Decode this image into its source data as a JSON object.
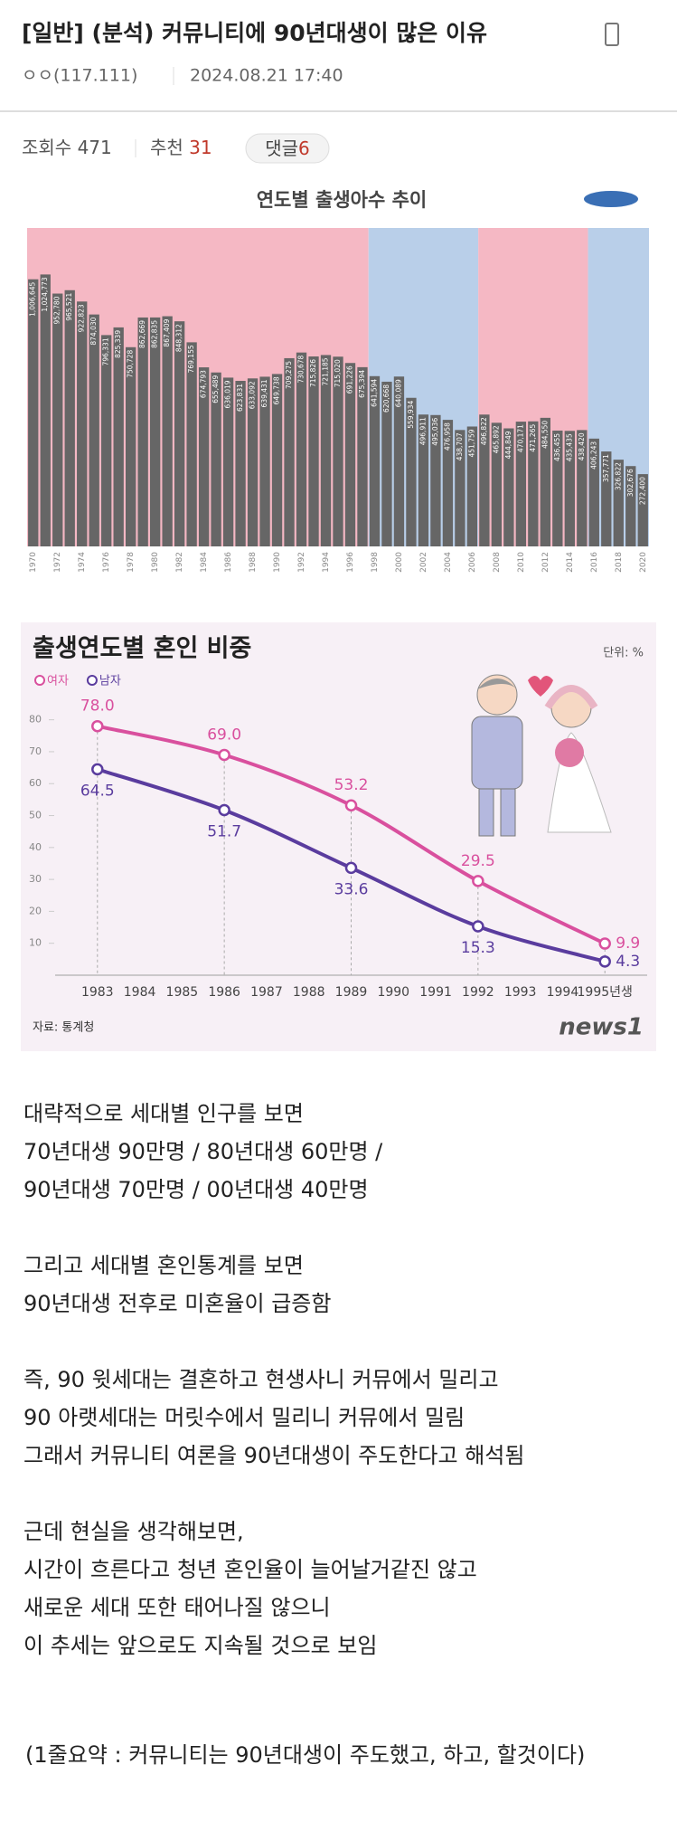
{
  "header": {
    "title": "[일반] (분석) 커뮤니티에 90년대생이 많은 이유",
    "author": "ㅇㅇ(117.111)",
    "date": "2024.08.21 17:40"
  },
  "stats": {
    "views_label": "조회수",
    "views": 471,
    "recommend_label": "추천",
    "recommend": 31,
    "comments_label": "댓글",
    "comments": 6
  },
  "chart_data": [
    {
      "type": "bar",
      "title": "연도별 출생아수 추이",
      "categories": [
        "1970",
        null,
        "1972",
        null,
        "1974",
        null,
        "1976",
        null,
        "1978",
        null,
        "1980",
        null,
        "1982",
        null,
        "1984",
        null,
        "1986",
        null,
        "1988",
        null,
        "1990",
        null,
        "1992",
        null,
        "1994",
        null,
        "1996",
        null,
        "1998",
        null,
        "2000",
        null,
        "2002",
        null,
        "2004",
        null,
        "2006",
        null,
        "2008",
        null,
        "2010",
        null,
        "2012",
        null,
        "2014",
        null,
        "2016",
        null,
        "2018",
        null,
        "2020"
      ],
      "values": [
        1006645,
        1024773,
        952780,
        965521,
        922823,
        874030,
        796331,
        825339,
        750728,
        862669,
        862835,
        867409,
        848312,
        769155,
        674793,
        655489,
        636019,
        623831,
        633092,
        639431,
        649738,
        709275,
        730678,
        715826,
        721185,
        715020,
        691226,
        675394,
        641594,
        620668,
        640089,
        559934,
        496911,
        495036,
        476958,
        438707,
        451759,
        496822,
        465892,
        444849,
        470171,
        471265,
        484550,
        436455,
        435435,
        438420,
        406243,
        357771,
        326822,
        302676,
        272400
      ],
      "value_labels": [
        "1,006,645",
        "1,024,773",
        "952,780",
        "965,521",
        "922,823",
        "874,030",
        "796,331",
        "825,339",
        "750,728",
        "862,669",
        "862,835",
        "867,409",
        "848,312",
        "769,155",
        "674,793",
        "655,489",
        "636,019",
        "623,831",
        "633,092",
        "639,431",
        "649,738",
        "709,275",
        "730,678",
        "715,826",
        "721,185",
        "715,020",
        "691,226",
        "675,394",
        "641,594",
        "620,668",
        "640,089",
        "559,934",
        "496,911",
        "495,036",
        "476,958",
        "438,707",
        "451,759",
        "496,822",
        "465,892",
        "444,849",
        "470,171",
        "471,265",
        "484,550",
        "436,455",
        "435,435",
        "438,420",
        "406,243",
        "357,771",
        "326,822",
        "302,676",
        "272,400"
      ],
      "color": "#666666",
      "ylim": [
        0,
        1200000
      ],
      "bands": [
        {
          "from": 1970,
          "to": 1997,
          "color": "#f5b8c4"
        },
        {
          "from": 1998,
          "to": 2006,
          "color": "#b9cfe9"
        },
        {
          "from": 2007,
          "to": 2015,
          "color": "#f5b8c4"
        },
        {
          "from": 2016,
          "to": 2020,
          "color": "#b9cfe9"
        }
      ]
    },
    {
      "type": "line",
      "title": "출생연도별 혼인 비중",
      "unit": "단위: %",
      "x": [
        1983,
        1986,
        1989,
        1992,
        1995
      ],
      "series": [
        {
          "name": "여자",
          "color": "#d9509e",
          "values": [
            78.0,
            69.0,
            53.2,
            29.5,
            9.9
          ],
          "value_labels": [
            "78.0",
            "69.0",
            "53.2",
            "29.5",
            "9.9"
          ]
        },
        {
          "name": "남자",
          "color": "#5a3c9e",
          "values": [
            64.5,
            51.7,
            33.6,
            15.3,
            4.3
          ],
          "value_labels": [
            "64.5",
            "51.7",
            "33.6",
            "15.3",
            "4.3"
          ]
        }
      ],
      "xlim": [
        1982,
        1996
      ],
      "ylim": [
        0,
        85
      ],
      "xticks": [
        1983,
        1984,
        1985,
        1986,
        1987,
        1988,
        1989,
        1990,
        1991,
        1992,
        1993,
        1994,
        {
          "value": 1995,
          "label": "1995년생"
        }
      ],
      "yticks": [
        10,
        20,
        30,
        40,
        50,
        60,
        70,
        80
      ],
      "source": "자료: 통계청",
      "logo": "news1"
    }
  ],
  "body": {
    "paragraphs": [
      [
        "대략적으로 세대별 인구를 보면",
        "70년대생 90만명 / 80년대생 60만명 /",
        "90년대생 70만명 / 00년대생 40만명"
      ],
      [
        "그리고 세대별 혼인통계를 보면",
        "90년대생 전후로 미혼율이 급증함"
      ],
      [
        "즉, 90 윗세대는 결혼하고 현생사니 커뮤에서 밀리고",
        "90 아랫세대는 머릿수에서 밀리니 커뮤에서 밀림",
        "그래서 커뮤니티 여론을 90년대생이 주도한다고 해석됨"
      ],
      [
        "근데 현실을 생각해보면,",
        "시간이 흐른다고 청년 혼인율이 늘어날거같진 않고",
        "새로운 세대 또한 태어나질 않으니",
        "이 추세는 앞으로도 지속될 것으로 보임"
      ]
    ],
    "summary": "(1줄요약 : 커뮤니티는 90년대생이 주도했고, 하고, 할것이다)"
  }
}
